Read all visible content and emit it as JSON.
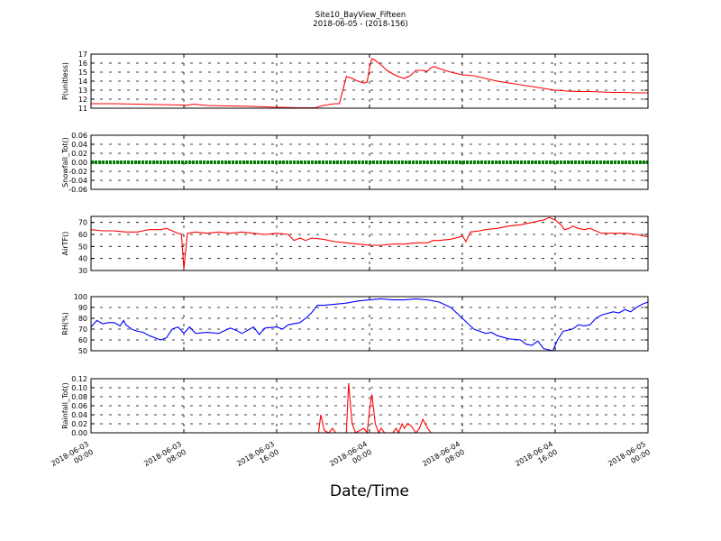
{
  "chart_data": {
    "type": "line",
    "title": "Site10_BayView_Fifteen",
    "subtitle": "2018-06-05 - (2018-156)",
    "xlabel": "Date/Time",
    "x_ticks": [
      {
        "label": "2018-06-03\n00:00",
        "hour": 0
      },
      {
        "label": "2018-06-03\n08:00",
        "hour": 8
      },
      {
        "label": "2018-06-03\n16:00",
        "hour": 16
      },
      {
        "label": "2018-06-04\n00:00",
        "hour": 24
      },
      {
        "label": "2018-06-04\n08:00",
        "hour": 32
      },
      {
        "label": "2018-06-04\n16:00",
        "hour": 40
      },
      {
        "label": "2018-06-05\n00:00",
        "hour": 48
      }
    ],
    "xlim_hours": [
      0,
      48
    ],
    "grid": true,
    "panels": [
      {
        "name": "P",
        "ylabel": "P(unitless)",
        "ylim": [
          11,
          17
        ],
        "yticks": [
          11,
          12,
          13,
          14,
          15,
          16,
          17
        ],
        "color": "#ff0000",
        "points": [
          [
            0,
            11.5
          ],
          [
            2,
            11.5
          ],
          [
            4,
            11.45
          ],
          [
            6,
            11.4
          ],
          [
            8,
            11.35
          ],
          [
            8.1,
            11.3
          ],
          [
            8.8,
            11.45
          ],
          [
            10,
            11.3
          ],
          [
            12,
            11.25
          ],
          [
            14,
            11.2
          ],
          [
            16,
            11.1
          ],
          [
            18,
            11.05
          ],
          [
            19.3,
            11.05
          ],
          [
            20,
            11.3
          ],
          [
            21,
            11.5
          ],
          [
            21.4,
            11.5
          ],
          [
            21.7,
            13
          ],
          [
            22,
            14.5
          ],
          [
            22.5,
            14.3
          ],
          [
            23,
            14
          ],
          [
            23.5,
            13.8
          ],
          [
            23.8,
            13.9
          ],
          [
            24,
            15.5
          ],
          [
            24.2,
            16.5
          ],
          [
            24.5,
            16.3
          ],
          [
            25,
            15.8
          ],
          [
            25.5,
            15.2
          ],
          [
            26,
            14.8
          ],
          [
            26.5,
            14.5
          ],
          [
            27,
            14.3
          ],
          [
            27.5,
            14.6
          ],
          [
            28,
            15.2
          ],
          [
            28.5,
            15.2
          ],
          [
            29,
            15.1
          ],
          [
            29.3,
            15.5
          ],
          [
            29.6,
            15.6
          ],
          [
            30,
            15.4
          ],
          [
            31,
            15
          ],
          [
            32,
            14.7
          ],
          [
            33,
            14.6
          ],
          [
            34,
            14.3
          ],
          [
            35,
            14
          ],
          [
            36,
            13.8
          ],
          [
            37,
            13.6
          ],
          [
            38,
            13.4
          ],
          [
            39,
            13.2
          ],
          [
            40,
            13
          ],
          [
            41,
            12.9
          ],
          [
            42,
            12.85
          ],
          [
            43,
            12.85
          ],
          [
            44,
            12.8
          ],
          [
            45,
            12.75
          ],
          [
            46,
            12.75
          ],
          [
            47,
            12.7
          ],
          [
            48,
            12.7
          ]
        ]
      },
      {
        "name": "Snowfall",
        "ylabel": "Snowfall_Tot()",
        "ylim": [
          -0.06,
          0.06
        ],
        "yticks": [
          -0.06,
          -0.04,
          -0.02,
          0.0,
          0.02,
          0.04,
          0.06
        ],
        "color": "#008000",
        "points": [
          [
            0,
            0
          ],
          [
            48,
            0
          ]
        ]
      },
      {
        "name": "AirTF",
        "ylabel": "AirTF()",
        "ylim": [
          30,
          75
        ],
        "yticks": [
          30,
          40,
          50,
          60,
          70
        ],
        "color": "#ff0000",
        "points": [
          [
            0,
            64
          ],
          [
            1,
            63
          ],
          [
            2,
            63
          ],
          [
            3,
            62
          ],
          [
            4,
            62
          ],
          [
            4.5,
            63
          ],
          [
            5,
            64
          ],
          [
            6,
            64
          ],
          [
            6.5,
            65
          ],
          [
            7,
            63
          ],
          [
            7.5,
            61
          ],
          [
            7.8,
            60
          ],
          [
            8,
            31
          ],
          [
            8.3,
            61
          ],
          [
            9,
            62
          ],
          [
            10,
            61
          ],
          [
            11,
            62
          ],
          [
            12,
            61
          ],
          [
            13,
            62
          ],
          [
            14,
            61
          ],
          [
            15,
            60
          ],
          [
            16,
            61
          ],
          [
            17,
            60
          ],
          [
            17.5,
            55
          ],
          [
            18,
            57
          ],
          [
            18.5,
            55
          ],
          [
            19,
            57
          ],
          [
            20,
            56
          ],
          [
            21,
            54
          ],
          [
            22,
            53
          ],
          [
            23,
            52
          ],
          [
            24,
            51
          ],
          [
            25,
            51
          ],
          [
            26,
            52
          ],
          [
            27,
            52
          ],
          [
            28,
            53
          ],
          [
            29,
            53
          ],
          [
            29.5,
            55
          ],
          [
            30,
            55
          ],
          [
            31,
            56
          ],
          [
            31.8,
            58
          ],
          [
            32,
            59
          ],
          [
            32.3,
            54
          ],
          [
            32.7,
            62
          ],
          [
            33.5,
            63
          ],
          [
            34,
            64
          ],
          [
            35,
            65
          ],
          [
            36,
            67
          ],
          [
            37,
            68
          ],
          [
            38,
            70
          ],
          [
            38.5,
            71
          ],
          [
            39,
            72
          ],
          [
            39.5,
            74
          ],
          [
            40,
            72
          ],
          [
            40.5,
            68
          ],
          [
            40.8,
            64
          ],
          [
            41.2,
            65
          ],
          [
            41.5,
            67
          ],
          [
            42,
            65
          ],
          [
            42.5,
            64
          ],
          [
            43,
            65
          ],
          [
            43.5,
            63
          ],
          [
            44,
            61
          ],
          [
            45,
            61
          ],
          [
            46,
            61
          ],
          [
            47,
            60
          ],
          [
            48,
            58
          ]
        ]
      },
      {
        "name": "RH",
        "ylabel": "RH(%)",
        "ylim": [
          50,
          100
        ],
        "yticks": [
          50,
          60,
          70,
          80,
          90,
          100
        ],
        "color": "#0000ff",
        "points": [
          [
            0,
            72
          ],
          [
            0.5,
            78
          ],
          [
            1,
            75
          ],
          [
            1.5,
            76
          ],
          [
            2,
            76
          ],
          [
            2.5,
            73
          ],
          [
            2.8,
            78
          ],
          [
            3,
            74
          ],
          [
            3.5,
            70
          ],
          [
            4,
            68
          ],
          [
            4.5,
            67
          ],
          [
            5,
            64
          ],
          [
            5.5,
            62
          ],
          [
            6,
            60
          ],
          [
            6.5,
            62
          ],
          [
            7,
            70
          ],
          [
            7.5,
            72
          ],
          [
            8,
            66
          ],
          [
            8.5,
            72
          ],
          [
            9,
            66
          ],
          [
            10,
            67
          ],
          [
            11,
            66
          ],
          [
            12,
            71
          ],
          [
            12.5,
            69
          ],
          [
            13,
            66
          ],
          [
            14,
            72
          ],
          [
            14.5,
            65
          ],
          [
            15,
            71
          ],
          [
            16,
            72
          ],
          [
            16.5,
            70
          ],
          [
            17,
            74
          ],
          [
            18,
            76
          ],
          [
            18.5,
            80
          ],
          [
            19,
            85
          ],
          [
            19.5,
            92
          ],
          [
            20,
            92
          ],
          [
            21,
            93
          ],
          [
            22,
            94
          ],
          [
            23,
            96
          ],
          [
            24,
            97
          ],
          [
            25,
            98
          ],
          [
            26,
            97
          ],
          [
            27,
            97
          ],
          [
            28,
            98
          ],
          [
            29,
            97
          ],
          [
            30,
            95
          ],
          [
            31,
            90
          ],
          [
            32,
            80
          ],
          [
            32.5,
            75
          ],
          [
            33,
            70
          ],
          [
            34,
            66
          ],
          [
            34.5,
            67
          ],
          [
            35,
            64
          ],
          [
            36,
            61
          ],
          [
            37,
            60
          ],
          [
            37.5,
            56
          ],
          [
            38,
            55
          ],
          [
            38.5,
            59
          ],
          [
            39,
            52
          ],
          [
            39.8,
            50
          ],
          [
            40.2,
            60
          ],
          [
            40.7,
            68
          ],
          [
            41.5,
            70
          ],
          [
            42,
            74
          ],
          [
            42.5,
            73
          ],
          [
            43,
            74
          ],
          [
            43.5,
            80
          ],
          [
            44,
            83
          ],
          [
            45,
            86
          ],
          [
            45.5,
            85
          ],
          [
            46,
            88
          ],
          [
            46.5,
            86
          ],
          [
            47,
            90
          ],
          [
            47.5,
            93
          ],
          [
            48,
            95
          ]
        ]
      },
      {
        "name": "Rainfall",
        "ylabel": "Rainfall_Tot()",
        "ylim": [
          0.0,
          0.12
        ],
        "yticks": [
          0.0,
          0.02,
          0.04,
          0.06,
          0.08,
          0.1,
          0.12
        ],
        "color": "#ff0000",
        "points": [
          [
            0,
            0
          ],
          [
            19.6,
            0
          ],
          [
            19.8,
            0.04
          ],
          [
            20.1,
            0.005
          ],
          [
            20.5,
            0
          ],
          [
            20.8,
            0.01
          ],
          [
            21.1,
            0
          ],
          [
            22,
            0
          ],
          [
            22.2,
            0.11
          ],
          [
            22.5,
            0.02
          ],
          [
            22.8,
            0
          ],
          [
            23.5,
            0.01
          ],
          [
            23.8,
            0
          ],
          [
            24,
            0.05
          ],
          [
            24.2,
            0.085
          ],
          [
            24.5,
            0.02
          ],
          [
            24.8,
            0
          ],
          [
            25,
            0.01
          ],
          [
            25.3,
            0
          ],
          [
            26,
            0
          ],
          [
            26.3,
            0.01
          ],
          [
            26.5,
            0
          ],
          [
            26.8,
            0.02
          ],
          [
            27,
            0.01
          ],
          [
            27.3,
            0.02
          ],
          [
            27.6,
            0.015
          ],
          [
            28,
            0
          ],
          [
            28.3,
            0.01
          ],
          [
            28.6,
            0.03
          ],
          [
            29,
            0.01
          ],
          [
            29.3,
            0
          ],
          [
            48,
            0
          ]
        ]
      }
    ]
  }
}
